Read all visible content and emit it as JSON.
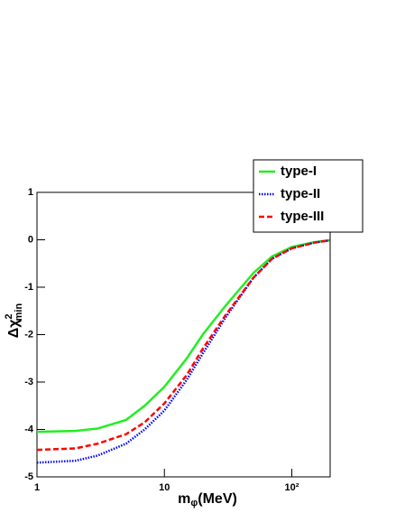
{
  "chart_data": {
    "type": "line",
    "x": [
      1,
      2,
      3,
      5,
      7,
      10,
      15,
      20,
      30,
      50,
      70,
      100,
      150,
      200
    ],
    "series": [
      {
        "name": "type-I",
        "color": "#22ee22",
        "style": "solid",
        "values": [
          -4.05,
          -4.03,
          -3.98,
          -3.8,
          -3.5,
          -3.1,
          -2.5,
          -2.0,
          -1.4,
          -0.7,
          -0.35,
          -0.15,
          -0.05,
          -0.01
        ]
      },
      {
        "name": "type-II",
        "color": "#0000ff",
        "style": "dotted",
        "values": [
          -4.7,
          -4.66,
          -4.55,
          -4.3,
          -4.0,
          -3.6,
          -2.95,
          -2.4,
          -1.65,
          -0.8,
          -0.4,
          -0.18,
          -0.06,
          -0.01
        ]
      },
      {
        "name": "type-III",
        "color": "#ff0000",
        "style": "dashed",
        "values": [
          -4.43,
          -4.4,
          -4.3,
          -4.1,
          -3.85,
          -3.45,
          -2.85,
          -2.3,
          -1.6,
          -0.8,
          -0.4,
          -0.18,
          -0.06,
          -0.01
        ]
      }
    ],
    "xlabel": [
      "m",
      "φ",
      "(MeV)"
    ],
    "ylabel": [
      "Δχ",
      "2",
      "min"
    ],
    "xlog": true,
    "xlim": [
      1,
      200
    ],
    "xticks": [
      1,
      10,
      {
        "value": 100,
        "label": "10²"
      }
    ],
    "ylim": [
      -5,
      1
    ],
    "yticks": [
      -5,
      -4,
      -3,
      -2,
      -1,
      0,
      1
    ],
    "legend": "top-right"
  }
}
